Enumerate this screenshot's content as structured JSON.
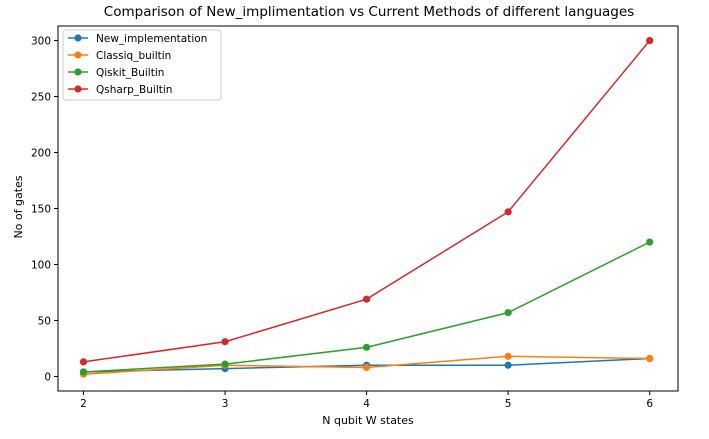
{
  "chart_data": {
    "type": "line",
    "title": "Comparison of New_implimentation vs Current Methods of different languages",
    "xlabel": "N qubit W states",
    "ylabel": "No of gates",
    "x": [
      2,
      3,
      4,
      5,
      6
    ],
    "xlim": [
      1.82,
      6.2
    ],
    "ylim": [
      -13,
      313
    ],
    "xticks": [
      2,
      3,
      4,
      5,
      6
    ],
    "yticks": [
      0,
      50,
      100,
      150,
      200,
      250,
      300
    ],
    "grid": false,
    "legend_position": "top-left",
    "series": [
      {
        "name": "New_implementation",
        "color": "#1f77b4",
        "values": [
          4,
          7,
          10,
          10,
          16
        ]
      },
      {
        "name": "Classiq_builtin",
        "color": "#ff7f0e",
        "values": [
          2,
          10,
          8,
          18,
          16
        ]
      },
      {
        "name": "Qiskit_Builtin",
        "color": "#2ca02c",
        "values": [
          4,
          11,
          26,
          57,
          120
        ]
      },
      {
        "name": "Qsharp_Builtin",
        "color": "#d62728",
        "values": [
          13,
          31,
          69,
          147,
          300
        ]
      }
    ]
  }
}
